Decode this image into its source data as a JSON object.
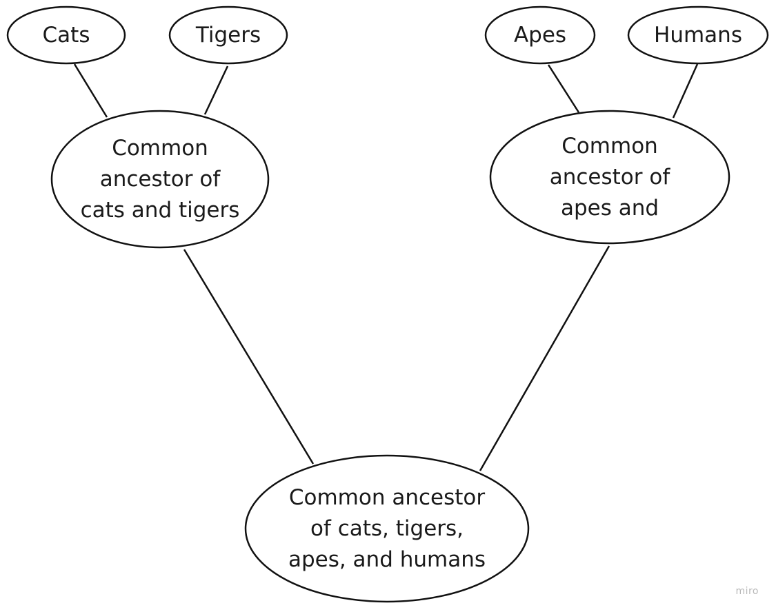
{
  "diagram": {
    "nodes": [
      {
        "id": "cats",
        "lines": [
          "Cats"
        ]
      },
      {
        "id": "tigers",
        "lines": [
          "Tigers"
        ]
      },
      {
        "id": "apes",
        "lines": [
          "Apes"
        ]
      },
      {
        "id": "humans",
        "lines": [
          "Humans"
        ]
      },
      {
        "id": "ancestor_cats_tigers",
        "lines": [
          "Common",
          "ancestor of",
          "cats and tigers"
        ]
      },
      {
        "id": "ancestor_apes",
        "lines": [
          "Common",
          "ancestor of",
          "apes and"
        ]
      },
      {
        "id": "ancestor_all",
        "lines": [
          "Common ancestor",
          "of cats, tigers,",
          "apes, and humans"
        ]
      }
    ],
    "edges": [
      {
        "from": "cats",
        "to": "ancestor_cats_tigers"
      },
      {
        "from": "tigers",
        "to": "ancestor_cats_tigers"
      },
      {
        "from": "apes",
        "to": "ancestor_apes"
      },
      {
        "from": "humans",
        "to": "ancestor_apes"
      },
      {
        "from": "ancestor_cats_tigers",
        "to": "ancestor_all"
      },
      {
        "from": "ancestor_apes",
        "to": "ancestor_all"
      }
    ]
  },
  "watermark": "miro",
  "colors": {
    "stroke": "#111111",
    "text": "#1a1a1a",
    "watermark": "#b8b8b8",
    "background": "#ffffff"
  }
}
